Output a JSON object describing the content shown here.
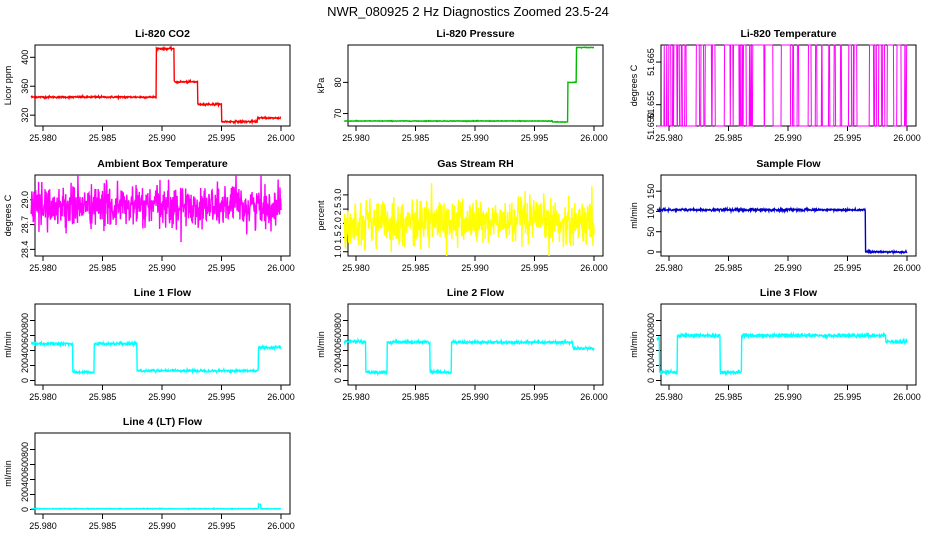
{
  "page_title": "NWR_080925  2 Hz Diagnostics Zoomed 23.5-24",
  "colors": {
    "red": "#ff0000",
    "green": "#00bb00",
    "magenta": "#ff00ff",
    "yellow": "#ffff00",
    "blue": "#0000cc",
    "cyan": "#00ffff"
  },
  "chart_data": [
    {
      "id": "co2",
      "type": "line",
      "title": "Li-820 CO2",
      "ylabel": "Licor ppm",
      "color": "red",
      "x_ticks": [
        "25.980",
        "25.985",
        "25.990",
        "25.995",
        "26.000"
      ],
      "xlim": [
        25.979,
        26.0
      ],
      "y_ticks": [
        "320",
        "360",
        "400"
      ],
      "y_tick_values": [
        320,
        360,
        400
      ],
      "ylim": [
        305,
        417
      ],
      "segments": [
        [
          25.979,
          25.9895,
          345
        ],
        [
          25.9895,
          25.991,
          412
        ],
        [
          25.991,
          25.993,
          366
        ],
        [
          25.993,
          25.995,
          335
        ],
        [
          25.995,
          25.998,
          311
        ],
        [
          25.998,
          26.0,
          316
        ]
      ],
      "noise": 0.6
    },
    {
      "id": "pressure",
      "type": "line",
      "title": "Li-820 Pressure",
      "ylabel": "kPa",
      "color": "green",
      "x_ticks": [
        "25.980",
        "25.985",
        "25.990",
        "25.995",
        "26.000"
      ],
      "xlim": [
        25.979,
        26.0
      ],
      "y_ticks": [
        "70",
        "80"
      ],
      "y_tick_values": [
        70,
        80
      ],
      "ylim": [
        66,
        92
      ],
      "segments": [
        [
          25.979,
          25.9965,
          67.6
        ],
        [
          25.9965,
          25.9978,
          67.3
        ],
        [
          25.9978,
          25.9985,
          80
        ],
        [
          25.9985,
          26.0,
          91.2
        ]
      ],
      "noise": 0.05
    },
    {
      "id": "licor_temp",
      "type": "line",
      "title": "Li-820 Temperature",
      "ylabel": "degrees C",
      "color": "magenta",
      "x_ticks": [
        "25.980",
        "25.985",
        "25.990",
        "25.995",
        "26.000"
      ],
      "xlim": [
        25.979,
        26.0
      ],
      "y_ticks": [
        "51.650",
        "51.655",
        "51.665"
      ],
      "y_tick_values": [
        51.65,
        51.655,
        51.665
      ],
      "ylim": [
        51.65,
        51.669
      ],
      "binary_low": 51.65,
      "binary_high": 51.669,
      "flip_prob": 0.12
    },
    {
      "id": "box_temp",
      "type": "line",
      "title": "Ambient Box Temperature",
      "ylabel": "degrees C",
      "color": "magenta",
      "x_ticks": [
        "25.980",
        "25.985",
        "25.990",
        "25.995",
        "26.000"
      ],
      "xlim": [
        25.979,
        26.0
      ],
      "y_ticks": [
        "28.4",
        "28.7",
        "29.0"
      ],
      "y_tick_values": [
        28.4,
        28.7,
        29.0
      ],
      "ylim": [
        28.32,
        29.3
      ],
      "center": 28.92,
      "noise": 0.13
    },
    {
      "id": "rh",
      "type": "line",
      "title": "Gas Stream RH",
      "ylabel": "percent",
      "color": "yellow",
      "x_ticks": [
        "25.980",
        "25.985",
        "25.990",
        "25.995",
        "26.000"
      ],
      "xlim": [
        25.979,
        26.0
      ],
      "y_ticks": [
        "1.0",
        "1.5",
        "2.0",
        "2.5",
        "3.0"
      ],
      "y_tick_values": [
        1.0,
        1.5,
        2.0,
        2.5,
        3.0
      ],
      "ylim": [
        0.85,
        3.7
      ],
      "center": 2.05,
      "noise": 0.4
    },
    {
      "id": "sample_flow",
      "type": "line",
      "title": "Sample Flow",
      "ylabel": "ml/min",
      "color": "blue",
      "x_ticks": [
        "25.980",
        "25.985",
        "25.990",
        "25.995",
        "26.000"
      ],
      "xlim": [
        25.979,
        26.0
      ],
      "y_ticks": [
        "0",
        "50",
        "100",
        "150"
      ],
      "y_tick_values": [
        0,
        50,
        100,
        150
      ],
      "ylim": [
        -10,
        190
      ],
      "segments": [
        [
          25.979,
          25.9965,
          104
        ],
        [
          25.9965,
          26.0,
          0
        ]
      ],
      "noise": 1.5
    },
    {
      "id": "line1",
      "type": "line",
      "title": "Line 1 Flow",
      "ylabel": "ml/min",
      "color": "cyan",
      "x_ticks": [
        "25.980",
        "25.985",
        "25.990",
        "25.995",
        "26.000"
      ],
      "xlim": [
        25.979,
        26.0
      ],
      "y_ticks": [
        "0",
        "200",
        "400",
        "600",
        "800"
      ],
      "y_tick_values": [
        0,
        200,
        400,
        600,
        800
      ],
      "ylim": [
        -60,
        1020
      ],
      "segments": [
        [
          25.979,
          25.9825,
          490
        ],
        [
          25.9825,
          25.9843,
          110
        ],
        [
          25.9843,
          25.9879,
          490
        ],
        [
          25.9879,
          25.9981,
          130
        ],
        [
          25.9981,
          26.0,
          440
        ]
      ],
      "noise": 8
    },
    {
      "id": "line2",
      "type": "line",
      "title": "Line 2 Flow",
      "ylabel": "ml/min",
      "color": "cyan",
      "x_ticks": [
        "25.980",
        "25.985",
        "25.990",
        "25.995",
        "26.000"
      ],
      "xlim": [
        25.979,
        26.0
      ],
      "y_ticks": [
        "0",
        "200",
        "400",
        "600",
        "800"
      ],
      "y_tick_values": [
        0,
        200,
        400,
        600,
        800
      ],
      "ylim": [
        -60,
        1020
      ],
      "segments": [
        [
          25.979,
          25.9808,
          520
        ],
        [
          25.9808,
          25.9826,
          110
        ],
        [
          25.9826,
          25.9862,
          510
        ],
        [
          25.9862,
          25.988,
          110
        ],
        [
          25.988,
          25.9982,
          510
        ],
        [
          25.9982,
          26.0,
          430
        ]
      ],
      "noise": 10
    },
    {
      "id": "line3",
      "type": "line",
      "title": "Line 3 Flow",
      "ylabel": "ml/min",
      "color": "cyan",
      "x_ticks": [
        "25.980",
        "25.985",
        "25.990",
        "25.995",
        "26.000"
      ],
      "xlim": [
        25.979,
        26.0
      ],
      "y_ticks": [
        "0",
        "200",
        "400",
        "600",
        "800"
      ],
      "y_tick_values": [
        0,
        200,
        400,
        600,
        800
      ],
      "ylim": [
        -60,
        1020
      ],
      "segments": [
        [
          25.979,
          25.9792,
          560
        ],
        [
          25.9792,
          25.9807,
          110
        ],
        [
          25.9807,
          25.9843,
          600
        ],
        [
          25.9843,
          25.9861,
          110
        ],
        [
          25.9861,
          25.9982,
          600
        ],
        [
          25.9982,
          26.0,
          520
        ]
      ],
      "noise": 12
    },
    {
      "id": "line4",
      "type": "line",
      "title": "Line 4 (LT) Flow",
      "ylabel": "ml/min",
      "color": "cyan",
      "x_ticks": [
        "25.980",
        "25.985",
        "25.990",
        "25.995",
        "26.000"
      ],
      "xlim": [
        25.979,
        26.0
      ],
      "y_ticks": [
        "0",
        "200",
        "400",
        "600",
        "800"
      ],
      "y_tick_values": [
        0,
        200,
        400,
        600,
        800
      ],
      "ylim": [
        -60,
        1020
      ],
      "segments": [
        [
          25.979,
          25.9981,
          10
        ],
        [
          25.9981,
          25.9983,
          70
        ],
        [
          25.9983,
          26.0,
          10
        ]
      ],
      "noise": 2
    }
  ]
}
